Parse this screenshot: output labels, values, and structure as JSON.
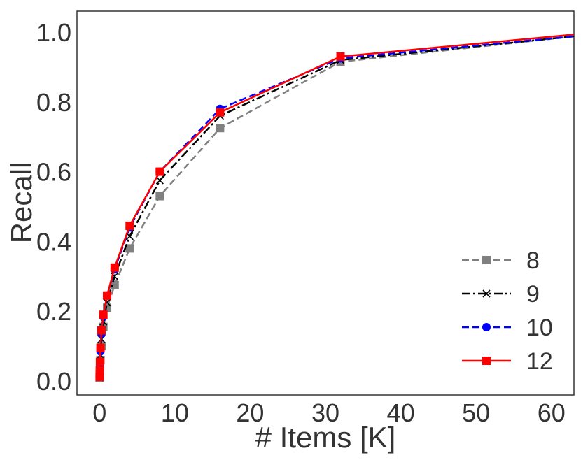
{
  "chart_data": {
    "type": "line",
    "xlabel": "# Items [K]",
    "ylabel": "Recall",
    "xlim": [
      -3,
      63
    ],
    "ylim": [
      -0.04,
      1.06
    ],
    "xticks": [
      0,
      10,
      20,
      30,
      40,
      50,
      60
    ],
    "xtick_labels": [
      "0",
      "10",
      "20",
      "30",
      "40",
      "50",
      "60"
    ],
    "yticks": [
      0.0,
      0.2,
      0.4,
      0.6,
      0.8,
      1.0
    ],
    "ytick_labels": [
      "0.0",
      "0.2",
      "0.4",
      "0.6",
      "0.8",
      "1.0"
    ],
    "grid": false,
    "legend_position": "bottom-right",
    "x": [
      0.015,
      0.03,
      0.06,
      0.12,
      0.25,
      0.5,
      1,
      2,
      4,
      8,
      16,
      32,
      64
    ],
    "series": [
      {
        "name": "8",
        "color": "#808080",
        "line_style": "dashed",
        "marker": "square",
        "values": [
          0.01,
          0.02,
          0.035,
          0.06,
          0.1,
          0.155,
          0.21,
          0.275,
          0.38,
          0.53,
          0.725,
          0.915,
          0.99
        ]
      },
      {
        "name": "9",
        "color": "#000000",
        "line_style": "dashdot",
        "marker": "x",
        "values": [
          0.01,
          0.025,
          0.045,
          0.075,
          0.12,
          0.17,
          0.225,
          0.3,
          0.415,
          0.575,
          0.76,
          0.92,
          0.99
        ]
      },
      {
        "name": "10",
        "color": "#0000ff",
        "line_style": "dashed",
        "marker": "circle",
        "values": [
          0.012,
          0.028,
          0.05,
          0.085,
          0.135,
          0.185,
          0.245,
          0.32,
          0.44,
          0.6,
          0.78,
          0.925,
          0.99
        ]
      },
      {
        "name": "12",
        "color": "#ff0000",
        "line_style": "solid",
        "marker": "square",
        "values": [
          0.012,
          0.03,
          0.055,
          0.095,
          0.145,
          0.19,
          0.245,
          0.325,
          0.445,
          0.6,
          0.77,
          0.93,
          0.995
        ]
      }
    ]
  }
}
